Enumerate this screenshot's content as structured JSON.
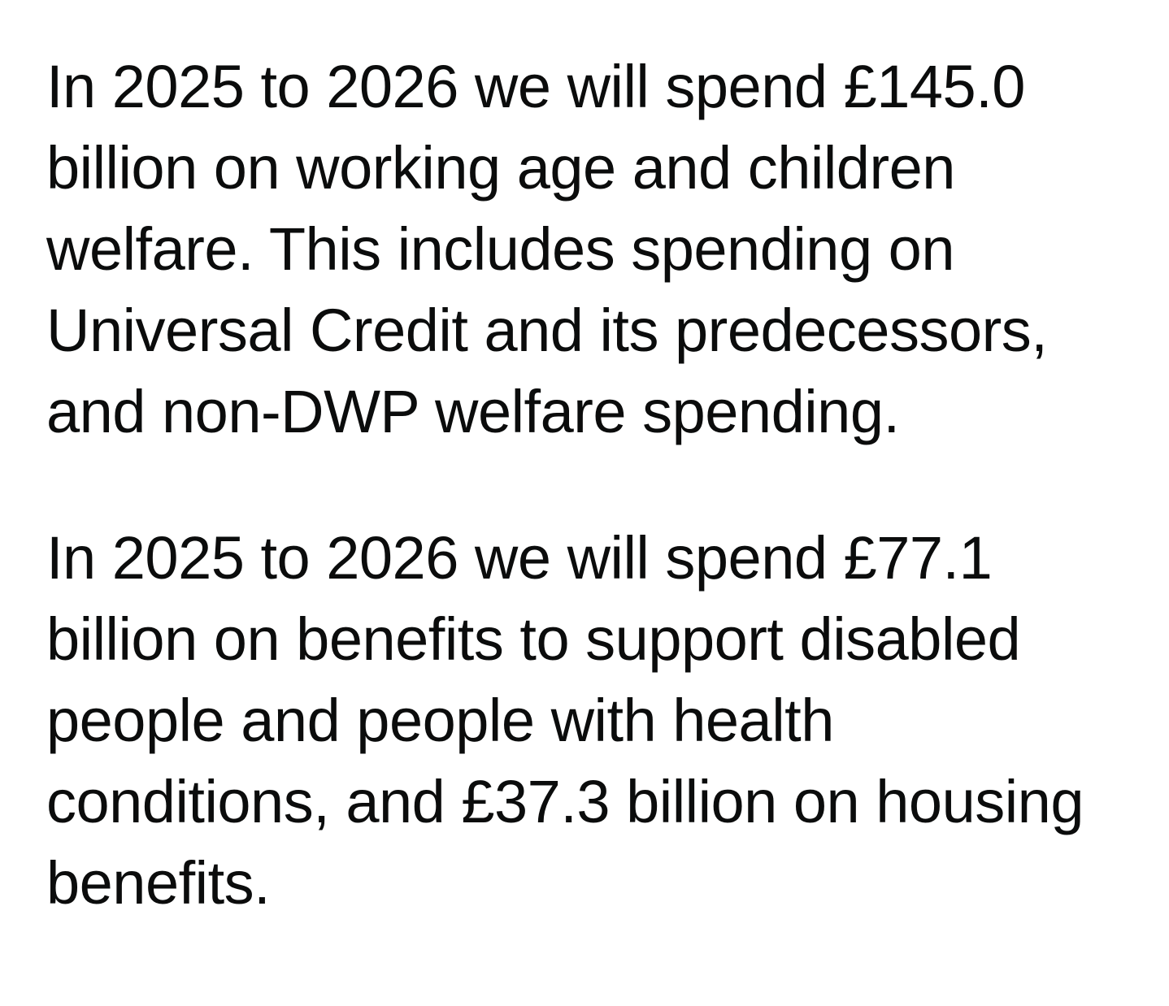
{
  "page": {
    "background_color": "#ffffff",
    "text_color": "#0b0c0c"
  },
  "content": {
    "paragraphs": [
      {
        "lines": [
          "In 2025 to 2026 we will spend £145.0",
          "billion on working age and children",
          "welfare. This includes spending on",
          "Universal Credit and its predecessors,",
          "and non-DWP welfare spending."
        ]
      },
      {
        "lines": [
          "In 2025 to 2026 we will spend £77.1",
          "billion on benefits to support disabled",
          "people and people with health",
          "conditions, and £37.3 billion on housing",
          "benefits."
        ]
      }
    ]
  }
}
